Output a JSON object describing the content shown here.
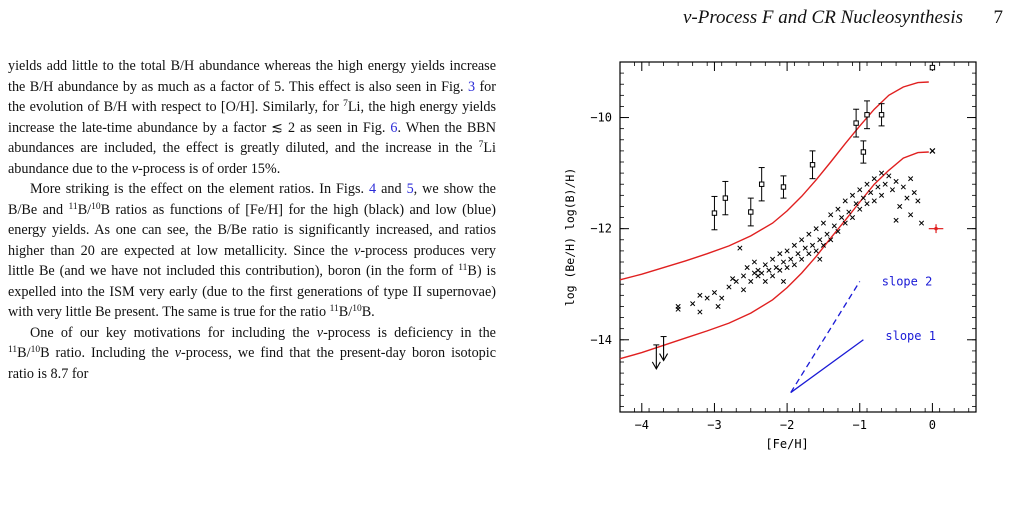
{
  "header": {
    "running_title": "ν-Process F and CR Nucleosynthesis",
    "page_number": "7"
  },
  "body": {
    "p1": [
      {
        "t": "yields add little to the total B/H abundance whereas the high energy yields increase the B/H abundance by as much as a factor of 5. This effect is also seen in Fig. "
      },
      {
        "t": "3",
        "ref": true
      },
      {
        "t": " for the evolution of B/H with respect to [O/H]. Similarly, for "
      },
      {
        "t": "7",
        "sup": true
      },
      {
        "t": "Li, the high energy yields increase the late-time abundance by a factor ≲ 2 as seen in Fig. "
      },
      {
        "t": "6",
        "ref": true
      },
      {
        "t": ". When the BBN abundances are included, the effect is greatly diluted, and the increase in the "
      },
      {
        "t": "7",
        "sup": true
      },
      {
        "t": "Li abundance due to the "
      },
      {
        "t": "ν",
        "i": true
      },
      {
        "t": "-process is of order 15%."
      }
    ],
    "p2": [
      {
        "t": "More striking is the effect on the element ratios. In Figs. "
      },
      {
        "t": "4",
        "ref": true
      },
      {
        "t": " and "
      },
      {
        "t": "5",
        "ref": true
      },
      {
        "t": ", we show the B/Be and "
      },
      {
        "t": "11",
        "sup": true
      },
      {
        "t": "B/"
      },
      {
        "t": "10",
        "sup": true
      },
      {
        "t": "B ratios as functions of [Fe/H] for the high (black) and low (blue) energy yields. As one can see, the B/Be ratio is significantly increased, and ratios higher than 20 are expected at low metallicity. Since the "
      },
      {
        "t": "ν",
        "i": true
      },
      {
        "t": "-process produces very little Be (and we have not included this contribution), boron (in the form of "
      },
      {
        "t": "11",
        "sup": true
      },
      {
        "t": "B) is expelled into the ISM very early (due to the first generations of type II supernovae) with very little Be present. The same is true for the ratio "
      },
      {
        "t": "11",
        "sup": true
      },
      {
        "t": "B/"
      },
      {
        "t": "10",
        "sup": true
      },
      {
        "t": "B."
      }
    ],
    "p3": [
      {
        "t": "One of our key motivations for including the "
      },
      {
        "t": "ν",
        "i": true
      },
      {
        "t": "-process is deficiency in the "
      },
      {
        "t": "11",
        "sup": true
      },
      {
        "t": "B/"
      },
      {
        "t": "10",
        "sup": true
      },
      {
        "t": "B ratio. Including the "
      },
      {
        "t": "ν",
        "i": true
      },
      {
        "t": "-process, we find that the present-day boron isotopic ratio is 8.7 for"
      }
    ]
  },
  "chart_data": {
    "type": "scatter",
    "xlabel": "[Fe/H]",
    "ylabel": "log (Be/H) log(B)/H)",
    "xlim": [
      -4.3,
      0.6
    ],
    "ylim": [
      -15.3,
      -9.0
    ],
    "x_ticks": [
      -4,
      -3,
      -2,
      -1,
      0
    ],
    "y_ticks": [
      -10,
      -12,
      -14
    ],
    "colors": {
      "curves": "#e02020",
      "slopes": "#1a1ad6",
      "points": "#000000",
      "solar": "#e02020"
    },
    "curves": {
      "upper": {
        "x": [
          -4.3,
          -4.0,
          -3.7,
          -3.4,
          -3.1,
          -2.8,
          -2.5,
          -2.2,
          -2.0,
          -1.8,
          -1.6,
          -1.4,
          -1.2,
          -1.0,
          -0.8,
          -0.6,
          -0.4,
          -0.2,
          -0.05
        ],
        "y": [
          -12.92,
          -12.82,
          -12.7,
          -12.58,
          -12.45,
          -12.31,
          -12.13,
          -11.9,
          -11.68,
          -11.42,
          -11.12,
          -10.8,
          -10.47,
          -10.15,
          -9.85,
          -9.6,
          -9.45,
          -9.37,
          -9.36
        ]
      },
      "lower": {
        "x": [
          -4.3,
          -4.0,
          -3.7,
          -3.4,
          -3.1,
          -2.8,
          -2.5,
          -2.2,
          -2.0,
          -1.8,
          -1.6,
          -1.4,
          -1.2,
          -1.0,
          -0.8,
          -0.6,
          -0.4,
          -0.2,
          -0.05
        ],
        "y": [
          -14.34,
          -14.23,
          -14.1,
          -13.97,
          -13.84,
          -13.7,
          -13.52,
          -13.28,
          -13.06,
          -12.8,
          -12.5,
          -12.17,
          -11.85,
          -11.52,
          -11.2,
          -10.95,
          -10.73,
          -10.63,
          -10.62
        ]
      }
    },
    "be_points": [
      {
        "x": -3.0,
        "y": -11.72,
        "err": 0.3
      },
      {
        "x": -2.85,
        "y": -11.45,
        "err": 0.3
      },
      {
        "x": -2.5,
        "y": -11.7,
        "err": 0.25
      },
      {
        "x": -2.35,
        "y": -11.2,
        "err": 0.3
      },
      {
        "x": -2.05,
        "y": -11.25,
        "err": 0.2
      },
      {
        "x": -1.65,
        "y": -10.85,
        "err": 0.25
      },
      {
        "x": -1.05,
        "y": -10.1,
        "err": 0.25
      },
      {
        "x": -0.9,
        "y": -9.95,
        "err": 0.25
      },
      {
        "x": -0.95,
        "y": -10.62,
        "err": 0.2
      },
      {
        "x": -0.7,
        "y": -9.95,
        "err": 0.2
      }
    ],
    "be_solar": {
      "x": 0.0,
      "y": -9.1
    },
    "b_solar": {
      "x": 0.0,
      "y": -10.6
    },
    "upper_limits": [
      {
        "x": -3.8,
        "y": -14.2
      },
      {
        "x": -3.7,
        "y": -14.05
      }
    ],
    "b_points": [
      [
        -3.5,
        -13.45
      ],
      [
        -3.5,
        -13.4
      ],
      [
        -3.3,
        -13.35
      ],
      [
        -3.2,
        -13.2
      ],
      [
        -3.1,
        -13.25
      ],
      [
        -3.0,
        -13.15
      ],
      [
        -2.9,
        -13.25
      ],
      [
        -2.8,
        -13.05
      ],
      [
        -2.75,
        -12.9
      ],
      [
        -2.7,
        -12.95
      ],
      [
        -2.6,
        -13.1
      ],
      [
        -2.6,
        -12.85
      ],
      [
        -2.55,
        -12.7
      ],
      [
        -2.5,
        -12.95
      ],
      [
        -2.45,
        -12.8
      ],
      [
        -2.45,
        -12.6
      ],
      [
        -2.4,
        -12.85
      ],
      [
        -2.4,
        -12.75
      ],
      [
        -2.35,
        -12.8
      ],
      [
        -2.3,
        -12.65
      ],
      [
        -2.3,
        -12.95
      ],
      [
        -2.25,
        -12.75
      ],
      [
        -2.2,
        -12.55
      ],
      [
        -2.2,
        -12.85
      ],
      [
        -2.15,
        -12.7
      ],
      [
        -2.1,
        -12.45
      ],
      [
        -2.1,
        -12.75
      ],
      [
        -2.05,
        -12.6
      ],
      [
        -2.0,
        -12.4
      ],
      [
        -2.0,
        -12.7
      ],
      [
        -1.95,
        -12.55
      ],
      [
        -1.9,
        -12.3
      ],
      [
        -1.9,
        -12.65
      ],
      [
        -1.85,
        -12.45
      ],
      [
        -1.8,
        -12.2
      ],
      [
        -1.8,
        -12.55
      ],
      [
        -1.75,
        -12.35
      ],
      [
        -1.7,
        -12.1
      ],
      [
        -1.7,
        -12.45
      ],
      [
        -1.65,
        -12.3
      ],
      [
        -1.6,
        -12.0
      ],
      [
        -1.6,
        -12.4
      ],
      [
        -1.55,
        -12.2
      ],
      [
        -1.5,
        -11.9
      ],
      [
        -1.5,
        -12.3
      ],
      [
        -1.45,
        -12.1
      ],
      [
        -1.4,
        -11.75
      ],
      [
        -1.4,
        -12.2
      ],
      [
        -1.35,
        -11.95
      ],
      [
        -1.3,
        -11.65
      ],
      [
        -1.3,
        -12.05
      ],
      [
        -1.25,
        -11.8
      ],
      [
        -1.2,
        -11.5
      ],
      [
        -1.2,
        -11.9
      ],
      [
        -1.15,
        -11.7
      ],
      [
        -1.1,
        -11.4
      ],
      [
        -1.1,
        -11.8
      ],
      [
        -1.05,
        -11.55
      ],
      [
        -1.0,
        -11.3
      ],
      [
        -1.0,
        -11.65
      ],
      [
        -0.95,
        -11.45
      ],
      [
        -0.9,
        -11.2
      ],
      [
        -0.9,
        -11.55
      ],
      [
        -0.85,
        -11.35
      ],
      [
        -0.8,
        -11.1
      ],
      [
        -0.8,
        -11.5
      ],
      [
        -0.75,
        -11.25
      ],
      [
        -0.7,
        -11.0
      ],
      [
        -0.7,
        -11.4
      ],
      [
        -0.65,
        -11.2
      ],
      [
        -0.6,
        -11.05
      ],
      [
        -0.55,
        -11.3
      ],
      [
        -0.5,
        -11.15
      ],
      [
        -0.45,
        -11.6
      ],
      [
        -0.4,
        -11.25
      ],
      [
        -0.35,
        -11.45
      ],
      [
        -0.3,
        -11.1
      ],
      [
        -0.25,
        -11.35
      ],
      [
        -0.2,
        -11.5
      ],
      [
        -0.15,
        -11.9
      ],
      [
        -0.3,
        -11.75
      ],
      [
        -0.5,
        -11.85
      ],
      [
        -2.65,
        -12.35
      ],
      [
        -2.05,
        -12.95
      ],
      [
        -1.55,
        -12.55
      ],
      [
        -3.2,
        -13.5
      ],
      [
        -2.95,
        -13.4
      ]
    ],
    "solar_marker": {
      "x": 0.05,
      "y": -12.0,
      "xerr": 0.1,
      "yerr": 0.08
    },
    "slope_lines": [
      {
        "label": "slope 2",
        "dashed": true,
        "x1": -1.95,
        "y1": -14.95,
        "x2": -1.0,
        "y2": -12.95
      },
      {
        "label": "slope 1",
        "dashed": false,
        "x1": -1.95,
        "y1": -14.95,
        "x2": -0.95,
        "y2": -14.0
      }
    ],
    "slope_labels": [
      "slope 2",
      "slope 1"
    ]
  }
}
